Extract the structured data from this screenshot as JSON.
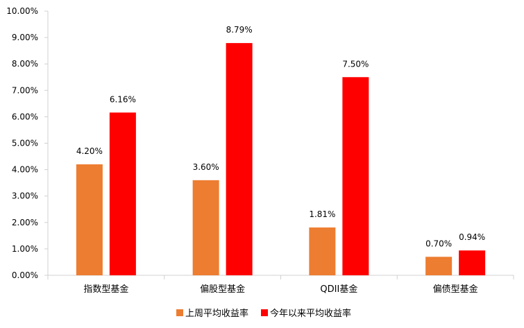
{
  "chart_data": {
    "type": "bar",
    "title": "",
    "xlabel": "",
    "ylabel": "",
    "categories": [
      "指数型基金",
      "偏股型基金",
      "QDII基金",
      "偏债型基金"
    ],
    "series": [
      {
        "name": "上周平均收益率",
        "color": "#ED7D31",
        "values": [
          4.2,
          3.6,
          1.81,
          0.7
        ],
        "labels": [
          "4.20%",
          "3.60%",
          "1.81%",
          "0.70%"
        ]
      },
      {
        "name": "今年以来平均收益率",
        "color": "#FF0000",
        "values": [
          6.16,
          8.79,
          7.5,
          0.94
        ],
        "labels": [
          "6.16%",
          "8.79%",
          "7.50%",
          "0.94%"
        ]
      }
    ],
    "ylim": [
      0,
      10
    ],
    "yticks": [
      "0.00%",
      "1.00%",
      "2.00%",
      "3.00%",
      "4.00%",
      "5.00%",
      "6.00%",
      "7.00%",
      "8.00%",
      "9.00%",
      "10.00%"
    ],
    "grid": false,
    "legend_position": "bottom"
  }
}
